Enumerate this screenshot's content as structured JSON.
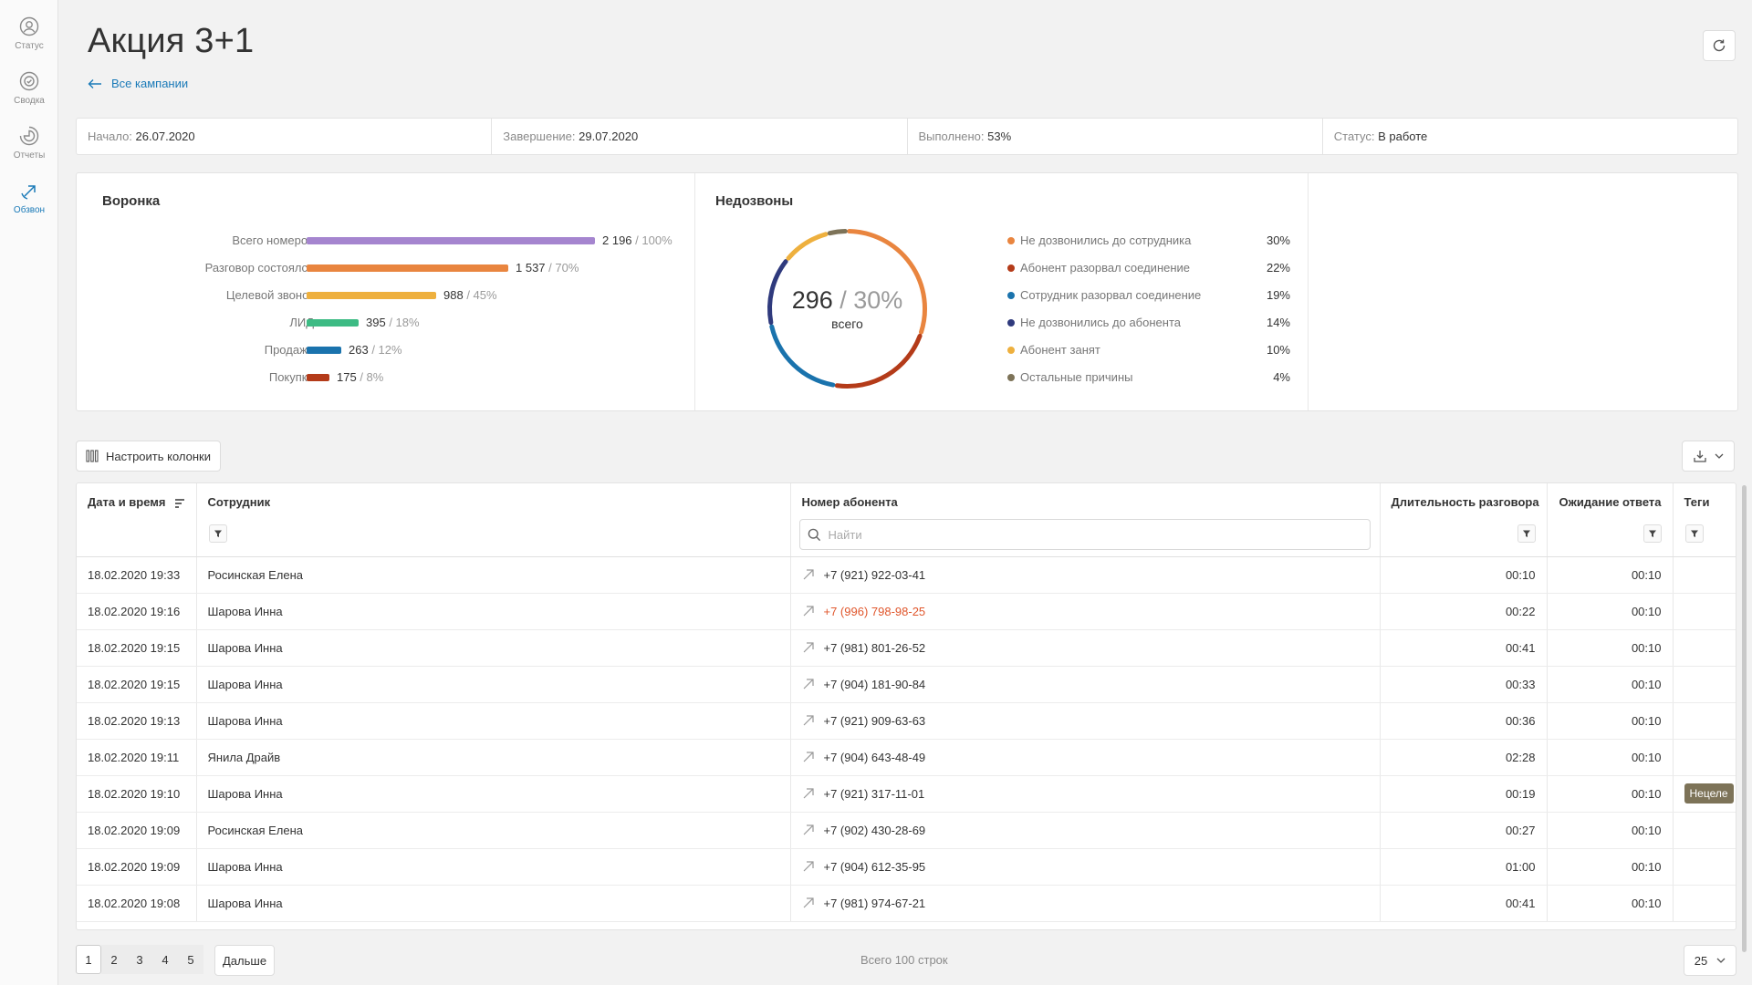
{
  "sidebar": {
    "items": [
      {
        "label": "Статус",
        "icon": "user-circle-icon",
        "active": false
      },
      {
        "label": "Сводка",
        "icon": "summary-icon",
        "active": false
      },
      {
        "label": "Отчеты",
        "icon": "pie-chart-icon",
        "active": false
      },
      {
        "label": "Обзвон",
        "icon": "outgoing-call-icon",
        "active": true
      }
    ]
  },
  "header": {
    "title": "Акция 3+1",
    "back_link": "Все кампании"
  },
  "info": {
    "start_label": "Начало:",
    "start_value": "26.07.2020",
    "end_label": "Завершение:",
    "end_value": "29.07.2020",
    "done_label": "Выполнено:",
    "done_value": "53%",
    "status_label": "Статус:",
    "status_value": "В работе"
  },
  "funnel": {
    "title": "Воронка",
    "rows": [
      {
        "label": "Всего номеров",
        "value": "2 196",
        "pct": "/ 100%",
        "fraction": 1.0,
        "color": "#a585cf"
      },
      {
        "label": "Разговор состоялся",
        "value": "1 537",
        "pct": "/ 70%",
        "fraction": 0.7,
        "color": "#e9853f"
      },
      {
        "label": "Целевой звонок",
        "value": "988",
        "pct": "/ 45%",
        "fraction": 0.45,
        "color": "#eeb03e"
      },
      {
        "label": "ЛИД",
        "value": "395",
        "pct": "/ 18%",
        "fraction": 0.18,
        "color": "#3dbb84"
      },
      {
        "label": "Продажа",
        "value": "263",
        "pct": "/ 12%",
        "fraction": 0.12,
        "color": "#1a73ad"
      },
      {
        "label": "Покупка",
        "value": "175",
        "pct": "/ 8%",
        "fraction": 0.08,
        "color": "#b43b19"
      }
    ]
  },
  "missed": {
    "title": "Недозвоны",
    "total": "296",
    "total_pct": "/ 30%",
    "total_sub": "всего",
    "reasons": [
      {
        "label": "Не дозвонились до сотрудника",
        "pct": "30%",
        "value": 30,
        "color": "#e9853f"
      },
      {
        "label": "Абонент разорвал соединение",
        "pct": "22%",
        "value": 22,
        "color": "#b43b19"
      },
      {
        "label": "Сотрудник разорвал соединение",
        "pct": "19%",
        "value": 19,
        "color": "#1a73ad"
      },
      {
        "label": "Не дозвонились до абонента",
        "pct": "14%",
        "value": 14,
        "color": "#2f3a7d"
      },
      {
        "label": "Абонент занят",
        "pct": "10%",
        "value": 10,
        "color": "#eeb03e"
      },
      {
        "label": "Остальные причины",
        "pct": "4%",
        "value": 4,
        "color": "#7d7358"
      }
    ]
  },
  "toolbar": {
    "columns_label": "Настроить колонки"
  },
  "table": {
    "headers": {
      "datetime": "Дата и время",
      "employee": "Сотрудник",
      "phone": "Номер абонента",
      "duration": "Длительность разговора",
      "wait": "Ожидание ответа",
      "tags": "Теги"
    },
    "search_placeholder": "Найти",
    "rows": [
      {
        "datetime": "18.02.2020 19:33",
        "employee": "Росинская Елена",
        "phone": "+7 (921) 922-03-41",
        "duration": "00:10",
        "wait": "00:10",
        "tag": "",
        "missed": false
      },
      {
        "datetime": "18.02.2020 19:16",
        "employee": "Шарова Инна",
        "phone": "+7 (996) 798-98-25",
        "duration": "00:22",
        "wait": "00:10",
        "tag": "",
        "missed": true
      },
      {
        "datetime": "18.02.2020 19:15",
        "employee": "Шарова Инна",
        "phone": "+7 (981) 801-26-52",
        "duration": "00:41",
        "wait": "00:10",
        "tag": "",
        "missed": false
      },
      {
        "datetime": "18.02.2020 19:15",
        "employee": "Шарова Инна",
        "phone": "+7 (904) 181-90-84",
        "duration": "00:33",
        "wait": "00:10",
        "tag": "",
        "missed": false
      },
      {
        "datetime": "18.02.2020 19:13",
        "employee": "Шарова Инна",
        "phone": "+7 (921) 909-63-63",
        "duration": "00:36",
        "wait": "00:10",
        "tag": "",
        "missed": false
      },
      {
        "datetime": "18.02.2020 19:11",
        "employee": "Янила Драйв",
        "phone": "+7 (904) 643-48-49",
        "duration": "02:28",
        "wait": "00:10",
        "tag": "",
        "missed": false
      },
      {
        "datetime": "18.02.2020 19:10",
        "employee": "Шарова Инна",
        "phone": "+7 (921) 317-11-01",
        "duration": "00:19",
        "wait": "00:10",
        "tag": "Нецеле",
        "missed": false
      },
      {
        "datetime": "18.02.2020 19:09",
        "employee": "Росинская Елена",
        "phone": "+7 (902) 430-28-69",
        "duration": "00:27",
        "wait": "00:10",
        "tag": "",
        "missed": false
      },
      {
        "datetime": "18.02.2020 19:09",
        "employee": "Шарова Инна",
        "phone": "+7 (904) 612-35-95",
        "duration": "01:00",
        "wait": "00:10",
        "tag": "",
        "missed": false
      },
      {
        "datetime": "18.02.2020 19:08",
        "employee": "Шарова Инна",
        "phone": "+7 (981) 974-67-21",
        "duration": "00:41",
        "wait": "00:10",
        "tag": "",
        "missed": false
      }
    ]
  },
  "pagination": {
    "pages": [
      "1",
      "2",
      "3",
      "4",
      "5"
    ],
    "current": "1",
    "next_label": "Дальше",
    "total_label": "Всего 100 строк",
    "page_size": "25"
  },
  "colors": {
    "accent": "#1a7ab8",
    "missed_phone": "#e0572d",
    "tag_bg": "#7d7358"
  }
}
